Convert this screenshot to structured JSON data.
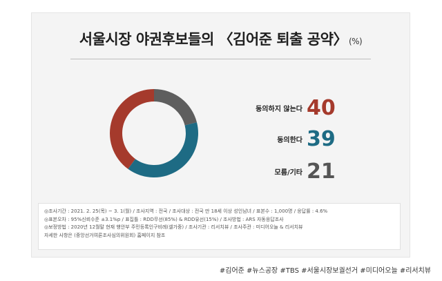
{
  "title": "서울시장 야권후보들의 〈김어준 퇴출 공약〉",
  "title_unit": "(%)",
  "chart_data": {
    "type": "pie",
    "donut": true,
    "title": "서울시장 야권후보들의 〈김어준 퇴출 공약〉",
    "unit": "(%)",
    "categories": [
      "동의하지 않는다",
      "동의한다",
      "모름/기타"
    ],
    "values": [
      40,
      39,
      21
    ],
    "colors": [
      "#a53a2c",
      "#1e6b84",
      "#5e5e5e"
    ],
    "value_labels": [
      "40",
      "39",
      "21"
    ],
    "legend_placement": "right"
  },
  "notes": [
    "◎조사기간 : 2021. 2. 25(목) ~ 3. 1(월) / 조사지역 : 전국 / 조사대상 : 전국 만 18세 이상 성인남녀 / 표본수 : 1,000명 / 응답률 : 4.6%",
    "◎표본오차 : 95%신뢰수준 ±3.1%p / 표집틀 : RDD무선(85%) & RDD유선(15%) / 조사방법 : ARS 자동응답조사",
    "◎보정방법 : 2020년 12월말 현재 행안부 주민등록인구비례(셀가중) / 조사기관 : 리서치뷰 / 조사주관 : 미디어오늘 & 리서치뷰",
    "자세한 사항은 (중앙선거여론조사심의위원회) 홈페이지 참조"
  ],
  "tags": "#김어준 #뉴스공장 #TBS #서울시장보궐선거 #미디어오늘 #리서치뷰"
}
